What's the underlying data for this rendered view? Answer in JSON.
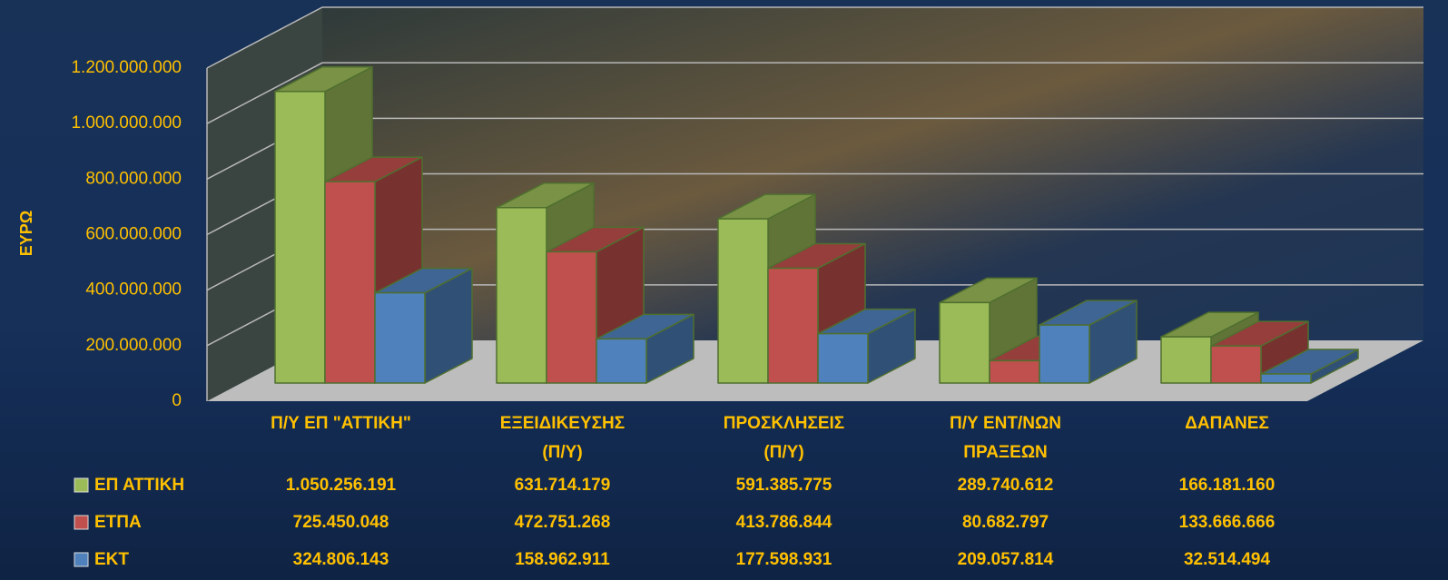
{
  "chart_data": {
    "type": "bar3d",
    "y_label": "ΕΥΡΩ",
    "categories": [
      "Π/Υ ΕΠ \"ΑΤΤΙΚΗ\"",
      "ΕΞΕΙΔΙΚΕΥΣΗΣ\n(Π/Υ)",
      "ΠΡΟΣΚΛΗΣΕΙΣ\n(Π/Υ)",
      "Π/Υ ΕΝΤ/ΝΩΝ\nΠΡΑΞΕΩΝ",
      "ΔΑΠΑΝΕΣ"
    ],
    "series": [
      {
        "name": "ΕΠ ΑΤΤΙΚΗ",
        "color": "#9bbb59",
        "values": [
          1050256191,
          631714179,
          591385775,
          289740612,
          166181160
        ],
        "value_labels": [
          "1.050.256.191",
          "631.714.179",
          "591.385.775",
          "289.740.612",
          "166.181.160"
        ]
      },
      {
        "name": "ΕΤΠΑ",
        "color": "#c0504d",
        "values": [
          725450048,
          472751268,
          413786844,
          80682797,
          133666666
        ],
        "value_labels": [
          "725.450.048",
          "472.751.268",
          "413.786.844",
          "80.682.797",
          "133.666.666"
        ]
      },
      {
        "name": "ΕΚΤ",
        "color": "#4f81bd",
        "values": [
          324806143,
          158962911,
          177598931,
          209057814,
          32514494
        ],
        "value_labels": [
          "324.806.143",
          "158.962.911",
          "177.598.931",
          "209.057.814",
          "32.514.494"
        ]
      }
    ],
    "ylim": [
      0,
      1200000000
    ],
    "yticks": [
      0,
      {
        "value": 200000000,
        "label": "200.000.000"
      },
      {
        "value": 400000000,
        "label": "400.000.000"
      },
      {
        "value": 600000000,
        "label": "600.000.000"
      },
      {
        "value": 800000000,
        "label": "800.000.000"
      },
      {
        "value": 1000000000,
        "label": "1.000.000.000"
      },
      {
        "value": 1200000000,
        "label": "1.200.000.000"
      }
    ],
    "grid": true
  }
}
